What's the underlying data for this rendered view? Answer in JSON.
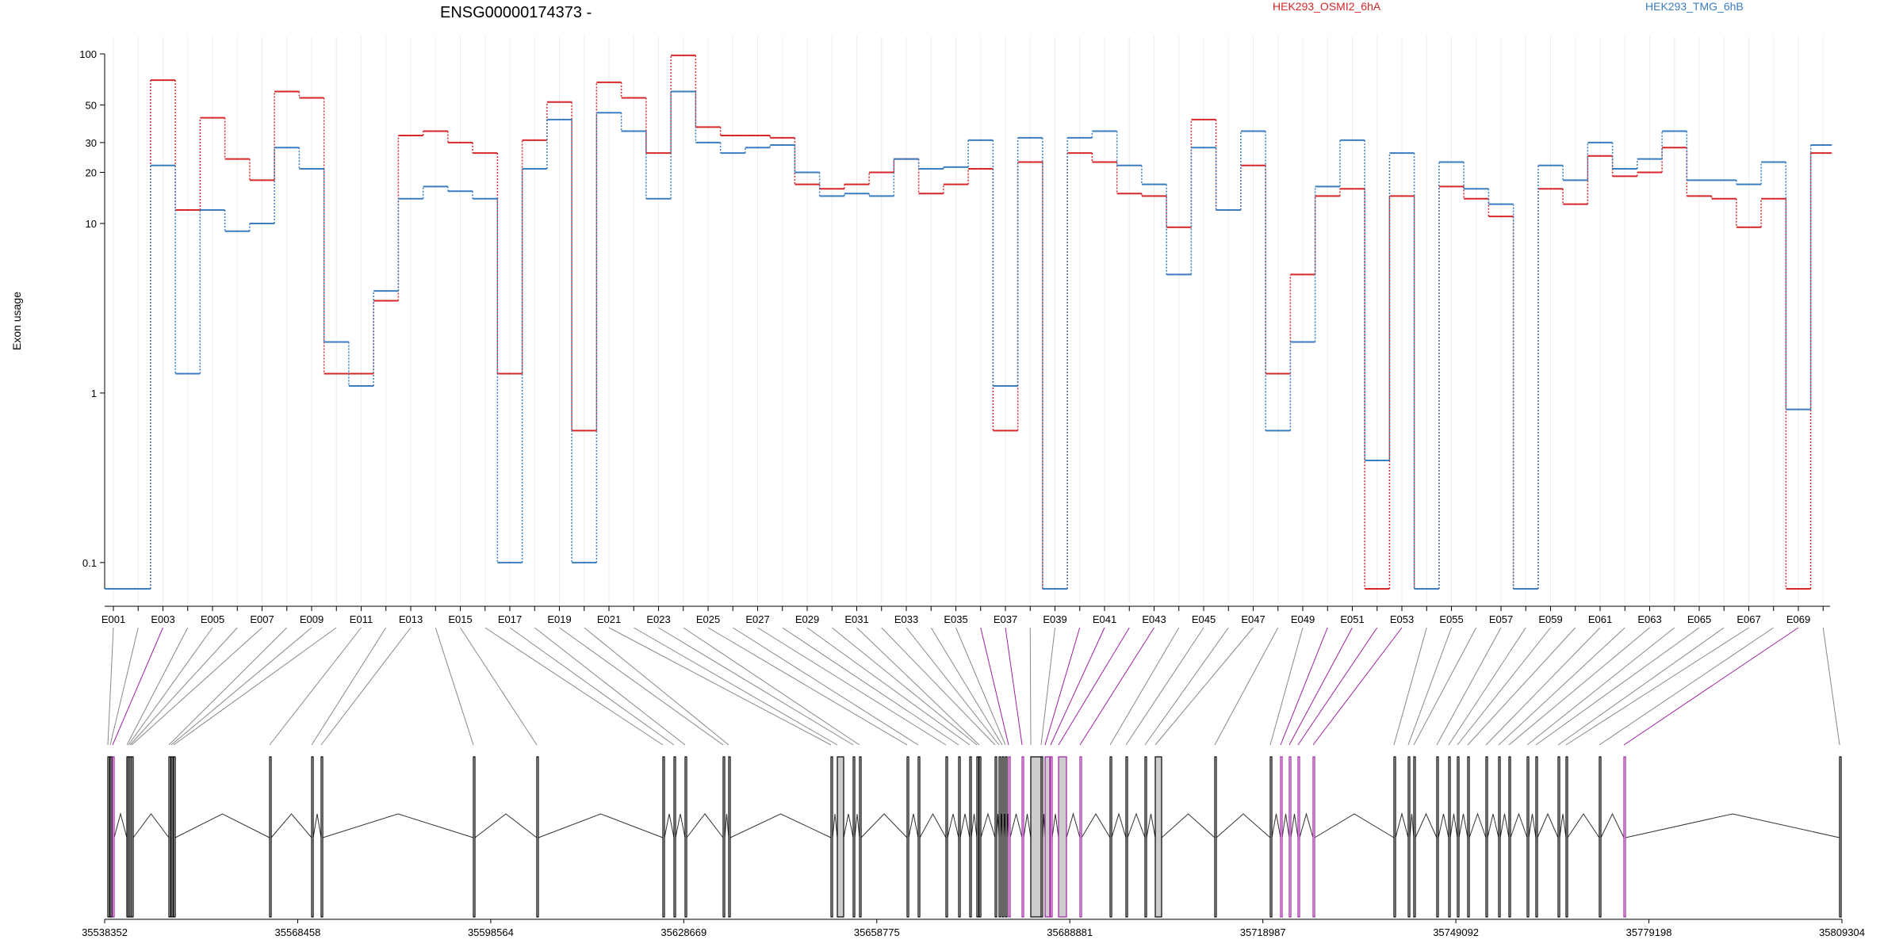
{
  "chart_data": {
    "type": "line",
    "title": "ENSG00000174373 -",
    "ylabel": "Exon usage",
    "xlabel": "",
    "y_scale": "log",
    "ylim": [
      0.07,
      100
    ],
    "y_ticks": [
      100,
      50,
      30,
      20,
      10,
      1,
      0.1
    ],
    "grid": "vertical lines at each exon",
    "legend_position": "top",
    "categories": [
      "E001",
      "E002",
      "E003",
      "E004",
      "E005",
      "E006",
      "E007",
      "E008",
      "E009",
      "E010",
      "E011",
      "E012",
      "E013",
      "E014",
      "E015",
      "E016",
      "E017",
      "E018",
      "E019",
      "E020",
      "E021",
      "E022",
      "E023",
      "E024",
      "E025",
      "E026",
      "E027",
      "E028",
      "E029",
      "E030",
      "E031",
      "E032",
      "E033",
      "E034",
      "E035",
      "E036",
      "E037",
      "E038",
      "E039",
      "E040",
      "E041",
      "E042",
      "E043",
      "E044",
      "E045",
      "E046",
      "E047",
      "E048",
      "E049",
      "E050",
      "E051",
      "E052",
      "E053",
      "E054",
      "E055",
      "E056",
      "E057",
      "E058",
      "E059",
      "E060",
      "E061",
      "E062",
      "E063",
      "E064",
      "E065",
      "E066",
      "E067",
      "E068",
      "E069",
      "E070"
    ],
    "tick_labels": [
      "E001",
      "E003",
      "E005",
      "E007",
      "E009",
      "E011",
      "E013",
      "E015",
      "E017",
      "E019",
      "E021",
      "E023",
      "E025",
      "E027",
      "E029",
      "E031",
      "E033",
      "E035",
      "E037",
      "E039",
      "E041",
      "E043",
      "E045",
      "E047",
      "E049",
      "E051",
      "E053",
      "E055",
      "E057",
      "E059",
      "E061",
      "E063",
      "E065",
      "E067",
      "E069"
    ],
    "series": [
      {
        "name": "HEK293_OSMI2_6hA",
        "color": "#d62728",
        "values": [
          0.07,
          0.07,
          70,
          12,
          42,
          24,
          18,
          60,
          55,
          1.3,
          1.3,
          3.5,
          33,
          35,
          30,
          26,
          1.3,
          31,
          52,
          0.6,
          68,
          55,
          26,
          98,
          37,
          33,
          33,
          32,
          17,
          16,
          17,
          20,
          24,
          15,
          17,
          21,
          0.6,
          23,
          0.07,
          26,
          23,
          15,
          14.5,
          9.5,
          41,
          12,
          22,
          1.3,
          5,
          14.5,
          16,
          0.07,
          14.5,
          0.07,
          16.5,
          14,
          11,
          0.07,
          16,
          13,
          25,
          19,
          20,
          28,
          14.5,
          14,
          9.5,
          14,
          0.07,
          26
        ]
      },
      {
        "name": "HEK293_TMG_6hB",
        "color": "#3a7dc0",
        "values": [
          0.07,
          0.07,
          22,
          1.3,
          12,
          9,
          10,
          28,
          21,
          2,
          1.1,
          4,
          14,
          16.5,
          15.5,
          14,
          0.1,
          21,
          41,
          0.1,
          45,
          35,
          14,
          60,
          30,
          26,
          28,
          29,
          20,
          14.5,
          15,
          14.5,
          24,
          21,
          21.5,
          31,
          1.1,
          32,
          0.07,
          32,
          35,
          22,
          17,
          5,
          28,
          12,
          35,
          0.6,
          2,
          16.5,
          31,
          0.4,
          26,
          0.07,
          23,
          16,
          13,
          0.07,
          22,
          18,
          30,
          21,
          24,
          35,
          18,
          18,
          17,
          23,
          0.8,
          29
        ]
      }
    ]
  },
  "gene_model": {
    "coordinate_labels": [
      "35538352",
      "35568458",
      "35598564",
      "35628669",
      "35658775",
      "35688881",
      "35718987",
      "35749092",
      "35779198",
      "35809304"
    ]
  }
}
